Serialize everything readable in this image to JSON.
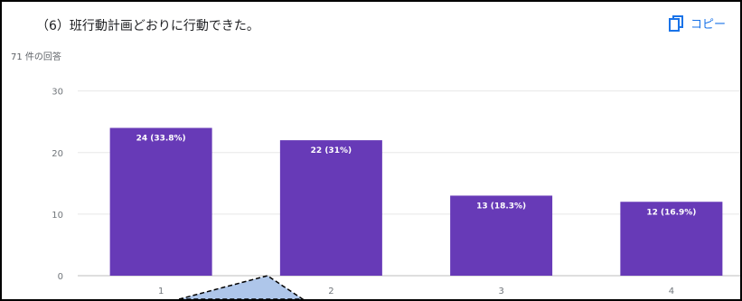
{
  "question": {
    "title": "（6）班行動計画どおりに行動できた。",
    "response_count": "71 件の回答"
  },
  "toolbar": {
    "copy_label": "コピー",
    "copy_icon": "copy-icon"
  },
  "colors": {
    "bar": "#673ab7",
    "accent": "#1a73e8",
    "grid": "#e8e8e8",
    "callout": "#aec6ea"
  },
  "chart_data": {
    "type": "bar",
    "categories": [
      "1",
      "2",
      "3",
      "4"
    ],
    "values": [
      24,
      22,
      13,
      12
    ],
    "data_labels": [
      "24 (33.8%)",
      "22 (31%)",
      "13 (18.3%)",
      "12 (16.9%)"
    ],
    "yticks": [
      0,
      10,
      20,
      30
    ],
    "ylim": [
      0,
      32
    ],
    "grid": true,
    "title": "",
    "xlabel": "",
    "ylabel": ""
  }
}
